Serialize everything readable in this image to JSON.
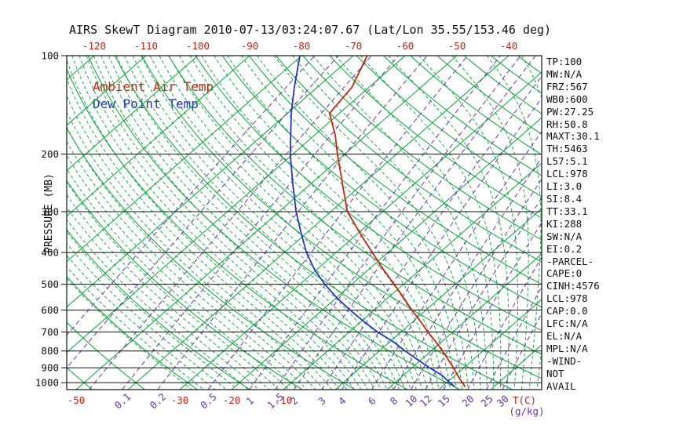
{
  "colors": {
    "temp_red": "#cc2211",
    "dew_blue": "#2233cc",
    "grid_green": "#00a832",
    "mixing_purple": "#6633bb",
    "axis_black": "#111111"
  },
  "stats_panel": {
    "lines": [
      "TP:100",
      "MW:N/A",
      "FRZ:567",
      "WB0:600",
      "PW:27.25",
      "RH:50.8",
      "MAXT:30.1",
      "TH:5463",
      "L57:5.1",
      "LCL:978",
      "LI:3.0",
      "SI:8.4",
      "TT:33.1",
      "KI:288",
      "SW:N/A",
      "EI:0.2",
      "-PARCEL-",
      "CAPE:0",
      "CINH:4576",
      "LCL:978",
      "CAP:0.0",
      "LFC:N/A",
      "EL:N/A",
      "MPL:N/A",
      "-WIND-",
      "NOT",
      "AVAIL"
    ]
  },
  "chart_data": {
    "type": "line",
    "subtype": "skew-t-log-p",
    "title": "AIRS SkewT Diagram 2010-07-13/03:24:07.67 (Lat/Lon 35.55/153.46 deg)",
    "x_axis": {
      "units_label": "T(C)",
      "top_ticks": [
        -120,
        -110,
        -100,
        -90,
        -80,
        -70,
        -60,
        -50,
        -40
      ],
      "bottom_ticks": [
        -50,
        -30,
        -20,
        -10
      ]
    },
    "y_axis": {
      "label": "PRESSURE (MB)",
      "scale": "log",
      "range_mb": [
        100,
        1050
      ],
      "ticks": [
        100,
        200,
        300,
        400,
        500,
        600,
        700,
        800,
        900,
        1000
      ]
    },
    "mixing_ratio_axis": {
      "units_label": "(g/kg)",
      "labels": [
        0.1,
        0.2,
        0.5,
        1,
        1.5,
        2,
        3,
        4,
        6,
        8,
        10,
        12,
        15,
        20,
        25,
        30
      ]
    },
    "grid": {
      "isotherms_c": {
        "min": -120,
        "max": 40,
        "step": 10
      },
      "dry_adiabats_c": {
        "min": -50,
        "max": 180,
        "step": 10
      },
      "moist_adiabats_c_at_500mb": {
        "min": -74,
        "max": 36,
        "step": 2
      },
      "mixing_ratio_lines_gkg": [
        0.01,
        0.02,
        0.05,
        0.1,
        0.2,
        0.5,
        1,
        1.5,
        2,
        3,
        4,
        6,
        8,
        10,
        12,
        15,
        20,
        25,
        30
      ]
    },
    "series": [
      {
        "name": "Ambient Air Temp",
        "color_key": "temp_red",
        "data_name": "ambient-temp-curve",
        "points_p_mb_t_c": [
          [
            1030,
            24.5
          ],
          [
            1000,
            23.0
          ],
          [
            950,
            20.5
          ],
          [
            900,
            18.0
          ],
          [
            850,
            15.2
          ],
          [
            800,
            12.2
          ],
          [
            750,
            8.9
          ],
          [
            700,
            5.2
          ],
          [
            650,
            1.5
          ],
          [
            600,
            -2.7
          ],
          [
            550,
            -7.0
          ],
          [
            500,
            -11.8
          ],
          [
            450,
            -17.2
          ],
          [
            400,
            -23.0
          ],
          [
            350,
            -29.5
          ],
          [
            300,
            -36.8
          ],
          [
            250,
            -43.4
          ],
          [
            200,
            -51.4
          ],
          [
            175,
            -56.0
          ],
          [
            150,
            -61.9
          ],
          [
            125,
            -63.3
          ],
          [
            100,
            -67.3
          ]
        ]
      },
      {
        "name": "Dew Point Temp",
        "color_key": "dew_blue",
        "data_name": "dew-point-curve",
        "points_p_mb_t_c": [
          [
            1030,
            22.5
          ],
          [
            1000,
            20.6
          ],
          [
            950,
            17.5
          ],
          [
            900,
            13.4
          ],
          [
            850,
            9.3
          ],
          [
            800,
            5.0
          ],
          [
            750,
            0.7
          ],
          [
            700,
            -4.5
          ],
          [
            650,
            -9.5
          ],
          [
            600,
            -14.6
          ],
          [
            550,
            -19.9
          ],
          [
            500,
            -25.2
          ],
          [
            450,
            -30.5
          ],
          [
            400,
            -35.7
          ],
          [
            350,
            -40.9
          ],
          [
            300,
            -46.7
          ],
          [
            250,
            -53.0
          ],
          [
            200,
            -60.5
          ],
          [
            150,
            -69.3
          ],
          [
            125,
            -74.4
          ],
          [
            100,
            -80.3
          ]
        ]
      }
    ]
  }
}
